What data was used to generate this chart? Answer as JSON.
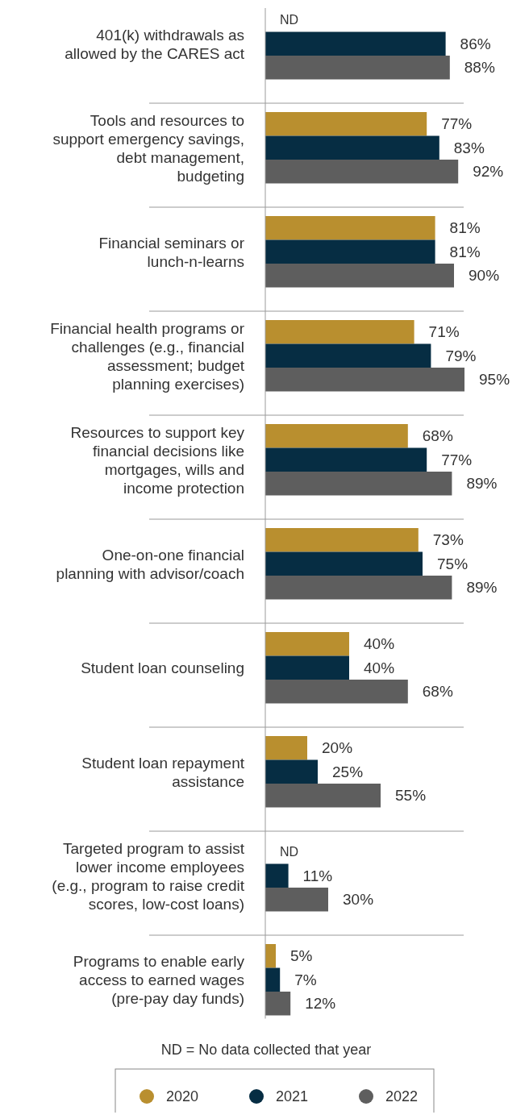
{
  "chart_data": {
    "type": "bar",
    "orientation": "horizontal",
    "categories": [
      "401(k) withdrawals as\nallowed by the CARES act",
      "Tools and resources to\nsupport emergency savings,\ndebt management,\nbudgeting",
      "Financial seminars or\nlunch-n-learns",
      "Financial health programs or\nchallenges (e.g., financial\nassessment; budget\nplanning exercises)",
      "Resources to support key\nfinancial decisions like\nmortgages, wills and\nincome protection",
      "One-on-one financial\nplanning with advisor/coach",
      "Student loan counseling",
      "Student loan repayment\nassistance",
      "Targeted program to assist\nlower income employees\n(e.g., program to raise credit\nscores, low-cost loans)",
      "Programs to enable early\naccess to earned wages\n(pre-pay day funds)"
    ],
    "series": [
      {
        "name": "2020",
        "color": "#b98f2f",
        "values": [
          null,
          77,
          81,
          71,
          68,
          73,
          40,
          20,
          null,
          5
        ],
        "value_labels": [
          "ND",
          "77%",
          "81%",
          "71%",
          "68%",
          "73%",
          "40%",
          "20%",
          "ND",
          "5%"
        ]
      },
      {
        "name": "2021",
        "color": "#062d43",
        "values": [
          86,
          83,
          81,
          79,
          77,
          75,
          40,
          25,
          11,
          7
        ],
        "value_labels": [
          "86%",
          "83%",
          "81%",
          "79%",
          "77%",
          "75%",
          "40%",
          "25%",
          "11%",
          "7%"
        ]
      },
      {
        "name": "2022",
        "color": "#5e5e5e",
        "values": [
          88,
          92,
          90,
          95,
          89,
          89,
          68,
          55,
          30,
          12
        ],
        "value_labels": [
          "88%",
          "92%",
          "90%",
          "95%",
          "89%",
          "89%",
          "68%",
          "55%",
          "30%",
          "12%"
        ]
      }
    ],
    "legend": "bottom",
    "annotations": [
      "ND = No data collected that year"
    ]
  }
}
